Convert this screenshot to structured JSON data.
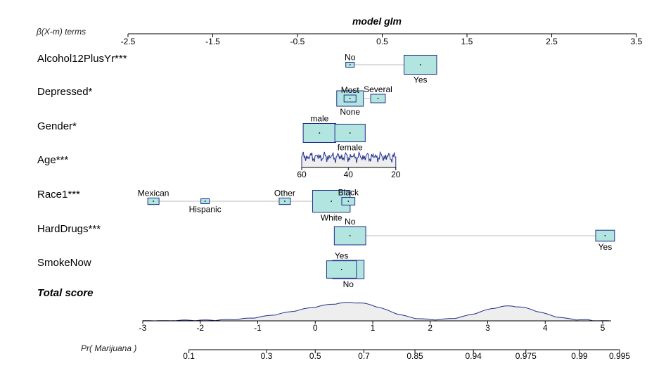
{
  "chart_data": {
    "type": "nomogram",
    "title": "model glm",
    "top_axis": {
      "label": "β(X-m) terms",
      "ticks": [
        -2.5,
        -1.5,
        -0.5,
        0.5,
        1.5,
        2.5,
        3.5
      ],
      "tick_labels": [
        "-2.5",
        "-1.5",
        "-0.5",
        "0.5",
        "1.5",
        "2.5",
        "3.5"
      ]
    },
    "terms": [
      {
        "label": "Alcohol12PlusYr***",
        "kind": "categorical",
        "levels": [
          {
            "name": "No",
            "beta": 0.12,
            "weight": 0.12,
            "label_pos": "above"
          },
          {
            "name": "Yes",
            "beta": 0.95,
            "weight": 1.0,
            "label_pos": "below"
          }
        ]
      },
      {
        "label": "Depressed*",
        "kind": "categorical",
        "levels": [
          {
            "name": "None",
            "beta": 0.12,
            "weight": 1.0,
            "label_pos": "below"
          },
          {
            "name": "Most",
            "beta": 0.12,
            "weight": 0.45,
            "label_pos": "above"
          },
          {
            "name": "Several",
            "beta": 0.45,
            "weight": 0.55,
            "label_pos": "above"
          }
        ]
      },
      {
        "label": "Gender*",
        "kind": "categorical",
        "levels": [
          {
            "name": "male",
            "beta": -0.24,
            "weight": 1.0,
            "label_pos": "above"
          },
          {
            "name": "female",
            "beta": 0.12,
            "weight": 0.93,
            "label_pos": "below"
          }
        ]
      },
      {
        "label": "Age***",
        "kind": "continuous",
        "ticks": [
          60,
          40,
          20
        ],
        "tick_labels": [
          "60",
          "40",
          "20"
        ],
        "beta_at_ticks": [
          -0.45,
          0.1,
          0.66
        ]
      },
      {
        "label": "Race1***",
        "kind": "categorical",
        "levels": [
          {
            "name": "Mexican",
            "beta": -2.2,
            "weight": 0.3,
            "label_pos": "above"
          },
          {
            "name": "Hispanic",
            "beta": -1.59,
            "weight": 0.22,
            "label_pos": "below"
          },
          {
            "name": "Other",
            "beta": -0.65,
            "weight": 0.3,
            "label_pos": "above"
          },
          {
            "name": "White",
            "beta": -0.1,
            "weight": 1.0,
            "label_pos": "below"
          },
          {
            "name": "Black",
            "beta": 0.1,
            "weight": 0.35,
            "label_pos": "above"
          }
        ]
      },
      {
        "label": "HardDrugs***",
        "kind": "categorical",
        "levels": [
          {
            "name": "No",
            "beta": 0.12,
            "weight": 1.0,
            "label_pos": "above"
          },
          {
            "name": "Yes",
            "beta": 3.13,
            "weight": 0.6,
            "label_pos": "below"
          }
        ]
      },
      {
        "label": "SmokeNow",
        "kind": "categorical",
        "levels": [
          {
            "name": "Yes",
            "beta": 0.02,
            "weight": 0.95,
            "label_pos": "above"
          },
          {
            "name": "No",
            "beta": 0.1,
            "weight": 1.0,
            "label_pos": "below"
          }
        ]
      }
    ],
    "total_score": {
      "label": "Total score",
      "ticks": [
        -3,
        -2,
        -1,
        0,
        1,
        2,
        3,
        4,
        5
      ],
      "tick_labels": [
        "-3",
        "-2",
        "-1",
        "0",
        "1",
        "2",
        "3",
        "4",
        "5"
      ]
    },
    "probability": {
      "label": "Pr( Marijuana )",
      "ticks": [
        0.1,
        0.3,
        0.5,
        0.7,
        0.85,
        0.94,
        0.975,
        0.99,
        0.995
      ],
      "tick_labels": [
        "0.1",
        "0.3",
        "0.5",
        "0.7",
        "0.85",
        "0.94",
        "0.975",
        "0.99",
        "0.995"
      ]
    },
    "colors": {
      "box_fill": "#b3e5e0",
      "box_stroke": "#1f2d8a",
      "density_line": "#1f2d8a",
      "density_fill": "#eeeeee",
      "connector": "#bbbbbb"
    }
  }
}
